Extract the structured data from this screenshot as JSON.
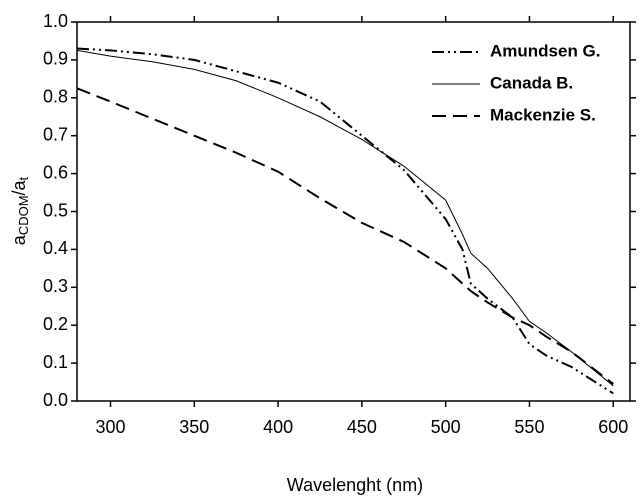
{
  "chart_data": {
    "type": "line",
    "xlabel": "Wavelenght (nm)",
    "ylabel": {
      "main": "a",
      "sub": "CDOM",
      "main2": "/a",
      "sub2": "t"
    },
    "x": [
      280,
      300,
      325,
      350,
      375,
      400,
      425,
      450,
      475,
      500,
      510,
      515,
      525,
      540,
      550,
      560,
      575,
      600
    ],
    "series": [
      {
        "name": "Amundsen G.",
        "color": "#000000",
        "style": "dashdotdot",
        "width": 2,
        "values": [
          0.93,
          0.925,
          0.915,
          0.9,
          0.87,
          0.84,
          0.79,
          0.7,
          0.61,
          0.48,
          0.4,
          0.31,
          0.27,
          0.22,
          0.15,
          0.12,
          0.09,
          0.02
        ]
      },
      {
        "name": "Canada B.",
        "color": "#000000",
        "style": "solid",
        "width": 1,
        "values": [
          0.925,
          0.91,
          0.895,
          0.875,
          0.845,
          0.8,
          0.75,
          0.69,
          0.62,
          0.53,
          0.44,
          0.39,
          0.35,
          0.27,
          0.21,
          0.18,
          0.13,
          0.04
        ]
      },
      {
        "name": "Mackenzie S.",
        "color": "#000000",
        "style": "dashed",
        "width": 2,
        "values": [
          0.825,
          0.79,
          0.745,
          0.7,
          0.655,
          0.605,
          0.535,
          0.47,
          0.42,
          0.35,
          0.31,
          0.29,
          0.26,
          0.22,
          0.2,
          0.17,
          0.13,
          0.045
        ]
      }
    ],
    "xlim": [
      280,
      610
    ],
    "xticks": [
      300,
      350,
      400,
      450,
      500,
      550,
      600
    ],
    "ylim": [
      0,
      1
    ],
    "yticks": [
      {
        "value": 0,
        "label": "0.0"
      },
      0.1,
      0.2,
      0.3,
      0.4,
      0.5,
      0.6,
      0.7,
      0.8,
      0.9,
      {
        "value": 1,
        "label": "1.0"
      }
    ],
    "legend": "upper right",
    "grid": false
  }
}
